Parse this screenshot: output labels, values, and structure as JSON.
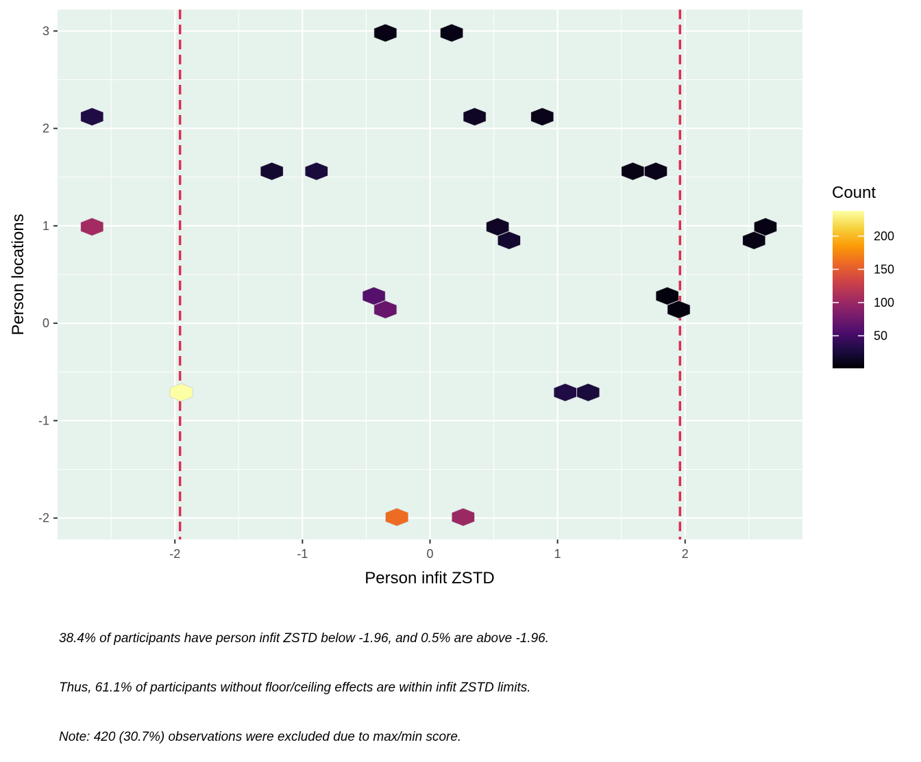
{
  "chart_data": {
    "type": "hexbin",
    "xlabel": "Person infit ZSTD",
    "ylabel": "Person locations",
    "xlim": [
      -2.92,
      2.92
    ],
    "ylim": [
      -2.22,
      3.22
    ],
    "x_ticks": [
      -2,
      -1,
      0,
      1,
      2
    ],
    "x_tick_labels": [
      "-2",
      "-1",
      "0",
      "1",
      "2"
    ],
    "y_ticks": [
      -2,
      -1,
      0,
      1,
      2,
      3
    ],
    "y_tick_labels": [
      "-2",
      "-1",
      "0",
      "1",
      "2",
      "3"
    ],
    "grid": true,
    "reference_lines": {
      "orientation": "vertical",
      "style": "dashed",
      "color": "#dc2d55",
      "x": [
        -1.96,
        1.96
      ]
    },
    "legend": {
      "title": "Count",
      "placement": "right",
      "min": 1,
      "max": 238,
      "ticks": [
        50,
        100,
        150,
        200
      ],
      "tick_labels": [
        "50",
        "100",
        "150",
        "200"
      ],
      "colormap": "inferno",
      "colors": [
        "#000004",
        "#1b0c41",
        "#4a0c6b",
        "#781c6d",
        "#a52c60",
        "#cf4446",
        "#ed6925",
        "#fb9b06",
        "#f7d13d",
        "#fcffa4"
      ]
    },
    "hexagons": [
      {
        "x": -0.35,
        "y": 2.98,
        "count": 8
      },
      {
        "x": 0.17,
        "y": 2.98,
        "count": 8
      },
      {
        "x": -2.65,
        "y": 2.12,
        "count": 30
      },
      {
        "x": 0.35,
        "y": 2.12,
        "count": 15
      },
      {
        "x": 0.88,
        "y": 2.12,
        "count": 10
      },
      {
        "x": -1.24,
        "y": 1.56,
        "count": 20
      },
      {
        "x": -0.89,
        "y": 1.56,
        "count": 25
      },
      {
        "x": 1.59,
        "y": 1.56,
        "count": 8
      },
      {
        "x": 1.77,
        "y": 1.56,
        "count": 10
      },
      {
        "x": -2.65,
        "y": 0.99,
        "count": 105
      },
      {
        "x": 0.53,
        "y": 0.99,
        "count": 15
      },
      {
        "x": 0.62,
        "y": 0.85,
        "count": 20
      },
      {
        "x": 2.63,
        "y": 0.99,
        "count": 8
      },
      {
        "x": 2.54,
        "y": 0.85,
        "count": 8
      },
      {
        "x": -0.44,
        "y": 0.28,
        "count": 60
      },
      {
        "x": -0.35,
        "y": 0.14,
        "count": 70
      },
      {
        "x": 1.86,
        "y": 0.28,
        "count": 5
      },
      {
        "x": 1.95,
        "y": 0.14,
        "count": 5
      },
      {
        "x": -1.95,
        "y": -0.71,
        "count": 238
      },
      {
        "x": 1.06,
        "y": -0.71,
        "count": 30
      },
      {
        "x": 1.24,
        "y": -0.71,
        "count": 25
      },
      {
        "x": -0.26,
        "y": -1.99,
        "count": 160
      },
      {
        "x": 0.26,
        "y": -1.99,
        "count": 100
      }
    ]
  },
  "caption": {
    "line1": "38.4% of participants have person infit ZSTD below -1.96, and 0.5% are above -1.96.",
    "line2": "Thus, 61.1% of participants without floor/ceiling effects are within infit ZSTD limits.",
    "line3": "Note: 420 (30.7%) observations were excluded due to max/min score."
  }
}
